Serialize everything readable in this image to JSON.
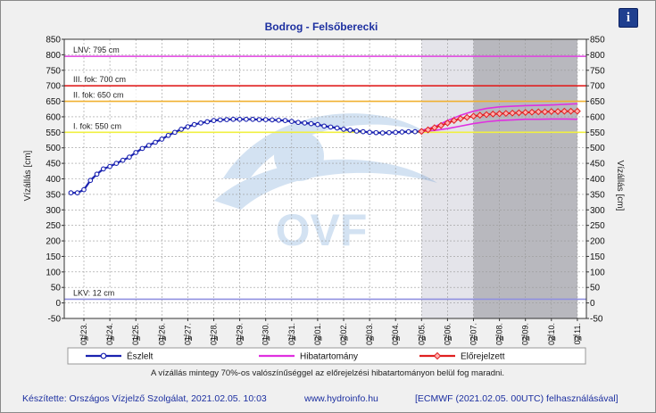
{
  "chart_data": {
    "type": "line",
    "title": "Bodrog - Felsőberecki",
    "ylabel_left": "Vízállás [cm]",
    "ylabel_right": "Vízállás [cm]",
    "ylim": [
      -50,
      850
    ],
    "yticks": [
      "-50",
      "0",
      "50",
      "100",
      "150",
      "200",
      "250",
      "300",
      "350",
      "400",
      "450",
      "500",
      "550",
      "600",
      "650",
      "700",
      "750",
      "800",
      "850"
    ],
    "xlim_days": [
      "01.22. 19h",
      "02.11. 7h"
    ],
    "xtick_labels": [
      {
        "date": "01.23.",
        "hour": "7h"
      },
      {
        "date": "01.24.",
        "hour": "7h"
      },
      {
        "date": "01.25.",
        "hour": "7h"
      },
      {
        "date": "01.26.",
        "hour": "7h"
      },
      {
        "date": "01.27.",
        "hour": "7h"
      },
      {
        "date": "01.28.",
        "hour": "7h"
      },
      {
        "date": "01.29.",
        "hour": "7h"
      },
      {
        "date": "01.30.",
        "hour": "7h"
      },
      {
        "date": "01.31.",
        "hour": "7h"
      },
      {
        "date": "02.01.",
        "hour": "7h"
      },
      {
        "date": "02.02.",
        "hour": "7h"
      },
      {
        "date": "02.03.",
        "hour": "7h"
      },
      {
        "date": "02.04.",
        "hour": "7h"
      },
      {
        "date": "02.05.",
        "hour": "7h"
      },
      {
        "date": "02.06.",
        "hour": "7h"
      },
      {
        "date": "02.07.",
        "hour": "7h"
      },
      {
        "date": "02.08.",
        "hour": "7h"
      },
      {
        "date": "02.09.",
        "hour": "7h"
      },
      {
        "date": "02.10.",
        "hour": "7h"
      },
      {
        "date": "02.11.",
        "hour": "7h"
      }
    ],
    "thresholds": [
      {
        "label": "LNV: 795 cm",
        "value": 795,
        "color": "#e040e0"
      },
      {
        "label": "III. fok: 700 cm",
        "value": 700,
        "color": "#e02020"
      },
      {
        "label": "II. fok: 650 cm",
        "value": 650,
        "color": "#f0b030"
      },
      {
        "label": "I. fok: 550 cm",
        "value": 550,
        "color": "#f0f040"
      },
      {
        "label": "LKV: 12 cm",
        "value": 12,
        "color": "#9090e0"
      }
    ],
    "forecast_bands": [
      {
        "from": "02.05. 7h",
        "to": "02.07. 7h",
        "color": "#e4e4ea"
      },
      {
        "from": "02.07. 7h",
        "to": "02.11. 7h",
        "color": "#b8b8be"
      }
    ],
    "series": [
      {
        "name": "Észlelt",
        "color": "#1a22b0",
        "x_days_from_0123_7h": [
          -0.5,
          -0.25,
          0,
          0.25,
          0.5,
          0.75,
          1,
          1.25,
          1.5,
          1.75,
          2,
          2.25,
          2.5,
          2.75,
          3,
          3.25,
          3.5,
          3.75,
          4,
          4.25,
          4.5,
          4.75,
          5,
          5.25,
          5.5,
          5.75,
          6,
          6.25,
          6.5,
          6.75,
          7,
          7.25,
          7.5,
          7.75,
          8,
          8.25,
          8.5,
          8.75,
          9,
          9.25,
          9.5,
          9.75,
          10,
          10.25,
          10.5,
          10.75,
          11,
          11.25,
          11.5,
          11.75,
          12,
          12.25,
          12.5,
          12.75,
          13
        ],
        "values": [
          355,
          355,
          365,
          395,
          415,
          432,
          440,
          450,
          460,
          470,
          485,
          498,
          508,
          518,
          528,
          540,
          550,
          560,
          568,
          575,
          580,
          584,
          588,
          590,
          591,
          592,
          592,
          592,
          592,
          591,
          591,
          590,
          589,
          588,
          585,
          582,
          580,
          578,
          575,
          570,
          567,
          564,
          560,
          557,
          554,
          552,
          550,
          549,
          548,
          549,
          550,
          551,
          552,
          552,
          553
        ]
      },
      {
        "name": "Hibatartomány",
        "color": "#e030e0",
        "x_days_from_0123_7h": [
          13,
          13.5,
          14,
          14.5,
          15,
          15.5,
          16,
          16.5,
          17,
          17.5,
          18,
          18.5,
          19
        ],
        "upper": [
          556,
          568,
          588,
          605,
          618,
          627,
          632,
          634,
          636,
          637,
          638,
          640,
          642
        ],
        "lower": [
          553,
          556,
          562,
          570,
          578,
          584,
          588,
          590,
          592,
          592,
          593,
          593,
          592
        ]
      },
      {
        "name": "Előrejelzett",
        "color": "#e02020",
        "x_days_from_0123_7h": [
          13,
          13.25,
          13.5,
          13.75,
          14,
          14.25,
          14.5,
          14.75,
          15,
          15.25,
          15.5,
          15.75,
          16,
          16.25,
          16.5,
          16.75,
          17,
          17.25,
          17.5,
          17.75,
          18,
          18.25,
          18.5,
          18.75,
          19
        ],
        "values": [
          553,
          558,
          565,
          572,
          580,
          588,
          594,
          598,
          602,
          605,
          607,
          609,
          610,
          611,
          612,
          613,
          614,
          615,
          616,
          616,
          617,
          617,
          618,
          618,
          618
        ]
      }
    ]
  },
  "legend": [
    {
      "name": "Észlelt",
      "color": "#1a22b0",
      "marker": "circle"
    },
    {
      "name": "Hibatartomány",
      "color": "#e030e0",
      "marker": "none"
    },
    {
      "name": "Előrejelzett",
      "color": "#e02020",
      "marker": "diamond"
    }
  ],
  "note": "A vízállás mintegy 70%-os valószínűséggel az előrejelzési hibatartományon belül fog maradni.",
  "watermark": "OVF",
  "footer": {
    "author": "Készítette: Országos Vízjelző Szolgálat, 2021.02.05. 10:03",
    "site": "www.hydroinfo.hu",
    "source": "[ECMWF (2021.02.05. 00UTC) felhasználásával]"
  },
  "info_button": "i"
}
